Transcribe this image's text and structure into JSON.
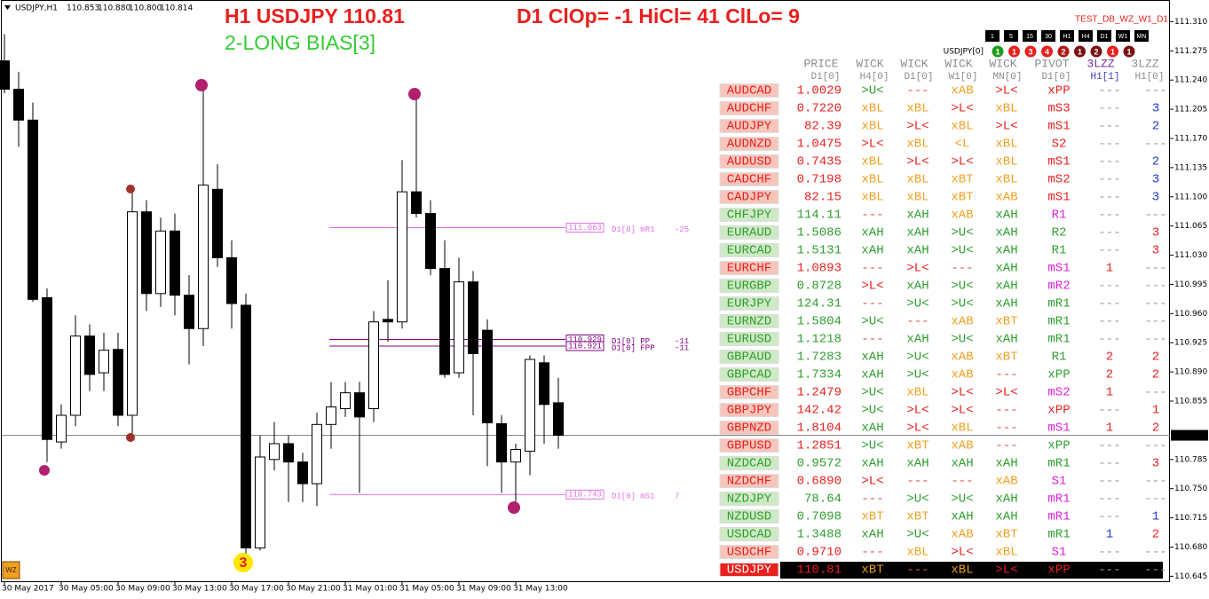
{
  "header": {
    "symbol_tf": "USDJPY,H1",
    "ohlc": [
      "110.853",
      "110.880",
      "110.800",
      "110.814"
    ],
    "title": "H1 USDJPY 110.81",
    "stats": "D1 ClOp= -1 HiCl= 41 ClLo= 9",
    "bias": "2-LONG BIAS[3]",
    "template": "TEST_DB_WZ_W1_D1",
    "badge": "WZ"
  },
  "timeframes": [
    "1",
    "5",
    "15",
    "30",
    "H1",
    "H4",
    "D1",
    "W1",
    "MN"
  ],
  "status": {
    "label": "USDJPY[0]",
    "values": [
      1,
      1,
      3,
      4,
      2,
      1,
      2,
      1,
      1
    ],
    "colors": [
      "#1a9e1a",
      "#e8201e",
      "#e8201e",
      "#e8201e",
      "#b01818",
      "#7a1010",
      "#7a1010",
      "#e8201e",
      "#7a1010"
    ]
  },
  "chart_data": {
    "type": "candlestick",
    "categories": [
      "30 May 2017",
      null,
      null,
      null,
      "30 May 05:00",
      null,
      null,
      null,
      "30 May 09:00",
      null,
      null,
      null,
      "30 May 13:00",
      null,
      null,
      null,
      "30 May 17:00",
      null,
      null,
      null,
      "30 May 21:00",
      null,
      null,
      null,
      "31 May 01:00",
      null,
      null,
      null,
      "31 May 05:00",
      null,
      null,
      null,
      "31 May 09:00",
      null,
      null,
      null,
      "31 May 13:00",
      null,
      null,
      null
    ],
    "open": [
      111.263,
      111.229,
      111.192,
      110.979,
      110.806,
      110.838,
      110.933,
      110.889,
      110.917,
      110.838,
      111.082,
      110.984,
      111.059,
      110.982,
      110.942,
      111.109,
      111.027,
      110.97,
      110.679,
      110.785,
      110.804,
      110.782,
      110.756,
      110.827,
      110.846,
      110.865,
      110.846,
      110.953,
      110.95,
      111.106,
      111.08,
      111.014,
      110.889,
      110.998,
      110.94,
      110.828,
      110.782,
      110.795,
      110.901,
      110.853
    ],
    "high": [
      111.295,
      111.25,
      111.213,
      110.99,
      110.851,
      110.958,
      110.947,
      110.937,
      110.937,
      111.107,
      111.096,
      111.075,
      111.08,
      111.006,
      111.231,
      111.139,
      111.048,
      110.984,
      110.814,
      110.83,
      110.814,
      110.793,
      110.841,
      110.878,
      110.878,
      110.878,
      110.963,
      111.0,
      111.144,
      111.224,
      111.096,
      111.048,
      111.027,
      111.011,
      110.953,
      110.838,
      110.804,
      110.91,
      110.91,
      110.883
    ],
    "low": [
      111.224,
      111.16,
      110.974,
      110.782,
      110.798,
      110.825,
      110.867,
      110.867,
      110.825,
      110.812,
      110.963,
      110.968,
      110.958,
      110.899,
      110.921,
      111.016,
      110.942,
      110.671,
      110.676,
      110.772,
      110.734,
      110.734,
      110.729,
      110.798,
      110.836,
      110.745,
      110.83,
      110.926,
      110.942,
      111.075,
      111.006,
      110.883,
      110.883,
      110.838,
      110.777,
      110.745,
      110.729,
      110.766,
      110.804,
      110.798
    ],
    "close": [
      111.229,
      111.192,
      110.977,
      110.809,
      110.838,
      110.933,
      110.887,
      110.916,
      110.838,
      111.082,
      110.984,
      111.059,
      110.982,
      110.942,
      111.114,
      111.027,
      110.972,
      110.679,
      110.788,
      110.804,
      110.782,
      110.756,
      110.827,
      110.848,
      110.865,
      110.836,
      110.95,
      110.95,
      111.106,
      111.08,
      111.014,
      110.887,
      110.998,
      110.912,
      110.829,
      110.782,
      110.797,
      110.905,
      110.851,
      110.814
    ],
    "up_color": "#ffffff",
    "down_color": "#000000",
    "ylim": [
      110.639,
      111.336
    ],
    "yticks": [
      {
        "value": 111.31,
        "label": "111.310"
      },
      {
        "value": 111.275,
        "label": "111.275"
      },
      {
        "value": 111.24,
        "label": "111.240"
      },
      {
        "value": 111.205,
        "label": "111.205"
      },
      {
        "value": 111.17,
        "label": "111.170"
      },
      {
        "value": 111.135,
        "label": "111.135"
      },
      {
        "value": 111.1,
        "label": "111.100"
      },
      {
        "value": 111.065,
        "label": "111.065"
      },
      {
        "value": 111.03,
        "label": "111.030"
      },
      {
        "value": 110.995,
        "label": "110.995"
      },
      {
        "value": 110.96,
        "label": "110.960"
      },
      {
        "value": 110.925,
        "label": "110.925"
      },
      {
        "value": 110.89,
        "label": "110.890"
      },
      {
        "value": 110.855,
        "label": "110.855"
      },
      {
        "value": 110.785,
        "label": "110.785"
      },
      {
        "value": 110.75,
        "label": "110.750"
      },
      {
        "value": 110.715,
        "label": "110.715"
      },
      {
        "value": 110.68,
        "label": "110.680"
      },
      {
        "value": 110.645,
        "label": "110.645"
      }
    ],
    "last_price": {
      "value": 110.814,
      "label": "110.814"
    },
    "levels": [
      {
        "value": 111.063,
        "label": "111.063",
        "name": "D1[0] mR1",
        "note": "-25",
        "color": "#e070e0"
      },
      {
        "value": 110.929,
        "label": "110.929",
        "name": "D1[0] PP",
        "note": "-11",
        "color": "#800080"
      },
      {
        "value": 110.921,
        "label": "110.921",
        "name": "D1[0] FPP",
        "note": "-11",
        "color": "#800080"
      },
      {
        "value": 110.743,
        "label": "110.743",
        "name": "D1[0] mS1",
        "note": "7",
        "color": "#e070e0"
      }
    ],
    "wave_label": "3"
  },
  "table": {
    "header": [
      "PRICE",
      "WICK",
      "WICK",
      "WICK",
      "WICK",
      "PIVOT",
      "3LZZ",
      "3LZZ"
    ],
    "subheader": [
      "D1[0]",
      "H4[0]",
      "D1[0]",
      "W1[0]",
      "MN[0]",
      "D1[0]",
      "H1[1]",
      "H1[0]"
    ],
    "header_colors": [
      "#8c8c8c",
      "#8c8c8c",
      "#8c8c8c",
      "#8c8c8c",
      "#8c8c8c",
      "#8c8c8c",
      "#7a2a9a",
      "#8c8c8c"
    ],
    "subheader_colors": [
      "#8c8c8c",
      "#8c8c8c",
      "#8c8c8c",
      "#8c8c8c",
      "#8c8c8c",
      "#8c8c8c",
      "#3a3ac0",
      "#8c8c8c"
    ],
    "rows": [
      {
        "symbol": "AUDCAD",
        "price": "1.0029",
        "color": "#e8201e",
        "symbol_background": "#f6c6bc",
        "signals": [
          ">U<",
          "---",
          "xAB",
          ">L<",
          "xPP",
          "---",
          "---"
        ],
        "signal_colors": [
          "#2e9e2e",
          "#e05050",
          "#f0a020",
          "#e8201e",
          "#e8201e",
          "#999999",
          "#999999"
        ]
      },
      {
        "symbol": "AUDCHF",
        "price": "0.7220",
        "color": "#e8201e",
        "symbol_background": "#f6c6bc",
        "signals": [
          "xBL",
          "xBL",
          ">L<",
          "xBL",
          "mS3",
          "---",
          "3"
        ],
        "signal_colors": [
          "#f0a020",
          "#f0a020",
          "#e8201e",
          "#f0a020",
          "#e8201e",
          "#999999",
          "#1a3acc"
        ]
      },
      {
        "symbol": "AUDJPY",
        "price": "82.39",
        "color": "#e8201e",
        "symbol_background": "#f6c6bc",
        "signals": [
          "xBL",
          ">L<",
          "xBL",
          ">L<",
          "mS1",
          "---",
          "2"
        ],
        "signal_colors": [
          "#f0a020",
          "#e8201e",
          "#f0a020",
          "#e8201e",
          "#e8201e",
          "#999999",
          "#1a3acc"
        ]
      },
      {
        "symbol": "AUDNZD",
        "price": "1.0475",
        "color": "#e8201e",
        "symbol_background": "#f6c6bc",
        "signals": [
          ">L<",
          "xBL",
          "<L",
          "xBL",
          "S2",
          "---",
          "---"
        ],
        "signal_colors": [
          "#e8201e",
          "#f0a020",
          "#f0a020",
          "#f0a020",
          "#e8201e",
          "#999999",
          "#999999"
        ]
      },
      {
        "symbol": "AUDUSD",
        "price": "0.7435",
        "color": "#e8201e",
        "symbol_background": "#f6c6bc",
        "signals": [
          "xBL",
          ">L<",
          ">L<",
          "xBL",
          "mS1",
          "---",
          "2"
        ],
        "signal_colors": [
          "#f0a020",
          "#e8201e",
          "#e8201e",
          "#f0a020",
          "#e8201e",
          "#999999",
          "#1a3acc"
        ]
      },
      {
        "symbol": "CADCHF",
        "price": "0.7198",
        "color": "#e8201e",
        "symbol_background": "#f6c6bc",
        "signals": [
          "xBL",
          "xBL",
          "xBT",
          "xBL",
          "mS2",
          "---",
          "3"
        ],
        "signal_colors": [
          "#f0a020",
          "#f0a020",
          "#f0a020",
          "#f0a020",
          "#e8201e",
          "#999999",
          "#1a3acc"
        ]
      },
      {
        "symbol": "CADJPY",
        "price": "82.15",
        "color": "#e8201e",
        "symbol_background": "#f6c6bc",
        "signals": [
          "xBL",
          "xBL",
          "xBT",
          "xAB",
          "mS1",
          "---",
          "3"
        ],
        "signal_colors": [
          "#f0a020",
          "#f0a020",
          "#f0a020",
          "#f0a020",
          "#e8201e",
          "#999999",
          "#1a3acc"
        ]
      },
      {
        "symbol": "CHFJPY",
        "price": "114.11",
        "color": "#2e9e2e",
        "symbol_background": "#cfe9c6",
        "signals": [
          "---",
          "xAH",
          "xAB",
          "xAH",
          "R1",
          "---",
          "---"
        ],
        "signal_colors": [
          "#e05050",
          "#2e9e2e",
          "#f0a020",
          "#2e9e2e",
          "#e020e0",
          "#999999",
          "#999999"
        ]
      },
      {
        "symbol": "EURAUD",
        "price": "1.5086",
        "color": "#2e9e2e",
        "symbol_background": "#cfe9c6",
        "signals": [
          "xAH",
          "xAH",
          ">U<",
          "xAH",
          "R2",
          "---",
          "3"
        ],
        "signal_colors": [
          "#2e9e2e",
          "#2e9e2e",
          "#2e9e2e",
          "#2e9e2e",
          "#2e9e2e",
          "#999999",
          "#e8201e"
        ]
      },
      {
        "symbol": "EURCAD",
        "price": "1.5131",
        "color": "#2e9e2e",
        "symbol_background": "#cfe9c6",
        "signals": [
          "xAH",
          "xAH",
          ">U<",
          "xAH",
          "R1",
          "---",
          "3"
        ],
        "signal_colors": [
          "#2e9e2e",
          "#2e9e2e",
          "#2e9e2e",
          "#2e9e2e",
          "#2e9e2e",
          "#999999",
          "#e8201e"
        ]
      },
      {
        "symbol": "EURCHF",
        "price": "1.0893",
        "color": "#e8201e",
        "symbol_background": "#f6c6bc",
        "signals": [
          "---",
          ">L<",
          "---",
          "xAH",
          "mS1",
          "1",
          "---"
        ],
        "signal_colors": [
          "#e05050",
          "#e8201e",
          "#e05050",
          "#2e9e2e",
          "#e020e0",
          "#e8201e",
          "#999999"
        ]
      },
      {
        "symbol": "EURGBP",
        "price": "0.8728",
        "color": "#2e9e2e",
        "symbol_background": "#cfe9c6",
        "signals": [
          ">L<",
          "xAH",
          ">U<",
          "xAH",
          "mR2",
          "---",
          "---"
        ],
        "signal_colors": [
          "#e8201e",
          "#2e9e2e",
          "#2e9e2e",
          "#2e9e2e",
          "#e020e0",
          "#999999",
          "#999999"
        ]
      },
      {
        "symbol": "EURJPY",
        "price": "124.31",
        "color": "#2e9e2e",
        "symbol_background": "#cfe9c6",
        "signals": [
          "---",
          ">U<",
          ">U<",
          "xAH",
          "mR1",
          "---",
          "---"
        ],
        "signal_colors": [
          "#e05050",
          "#2e9e2e",
          "#2e9e2e",
          "#2e9e2e",
          "#2e9e2e",
          "#999999",
          "#999999"
        ]
      },
      {
        "symbol": "EURNZD",
        "price": "1.5804",
        "color": "#2e9e2e",
        "symbol_background": "#cfe9c6",
        "signals": [
          ">U<",
          "---",
          "xAB",
          "xBT",
          "mR1",
          "---",
          "---"
        ],
        "signal_colors": [
          "#2e9e2e",
          "#e05050",
          "#f0a020",
          "#f0a020",
          "#2e9e2e",
          "#999999",
          "#999999"
        ]
      },
      {
        "symbol": "EURUSD",
        "price": "1.1218",
        "color": "#2e9e2e",
        "symbol_background": "#cfe9c6",
        "signals": [
          "---",
          "xAH",
          ">U<",
          "xAH",
          "mR1",
          "---",
          "---"
        ],
        "signal_colors": [
          "#e05050",
          "#2e9e2e",
          "#2e9e2e",
          "#2e9e2e",
          "#2e9e2e",
          "#999999",
          "#999999"
        ]
      },
      {
        "symbol": "GBPAUD",
        "price": "1.7283",
        "color": "#2e9e2e",
        "symbol_background": "#cfe9c6",
        "signals": [
          "xAH",
          ">U<",
          "xAB",
          "xBT",
          "R1",
          "2",
          "2"
        ],
        "signal_colors": [
          "#2e9e2e",
          "#2e9e2e",
          "#f0a020",
          "#f0a020",
          "#2e9e2e",
          "#e8201e",
          "#e8201e"
        ]
      },
      {
        "symbol": "GBPCAD",
        "price": "1.7334",
        "color": "#2e9e2e",
        "symbol_background": "#cfe9c6",
        "signals": [
          "xAH",
          ">U<",
          "xAB",
          "---",
          "xPP",
          "2",
          "2"
        ],
        "signal_colors": [
          "#2e9e2e",
          "#2e9e2e",
          "#f0a020",
          "#e05050",
          "#2e9e2e",
          "#e8201e",
          "#e8201e"
        ]
      },
      {
        "symbol": "GBPCHF",
        "price": "1.2479",
        "color": "#e8201e",
        "symbol_background": "#f6c6bc",
        "signals": [
          ">U<",
          "xBL",
          ">L<",
          ">L<",
          "mS2",
          "1",
          "---"
        ],
        "signal_colors": [
          "#2e9e2e",
          "#f0a020",
          "#e8201e",
          "#e8201e",
          "#e020e0",
          "#e8201e",
          "#999999"
        ]
      },
      {
        "symbol": "GBPJPY",
        "price": "142.42",
        "color": "#e8201e",
        "symbol_background": "#f6c6bc",
        "signals": [
          ">U<",
          ">L<",
          ">L<",
          "---",
          "xPP",
          "---",
          "1"
        ],
        "signal_colors": [
          "#2e9e2e",
          "#e8201e",
          "#e8201e",
          "#e05050",
          "#e8201e",
          "#999999",
          "#e8201e"
        ]
      },
      {
        "symbol": "GBPNZD",
        "price": "1.8104",
        "color": "#e8201e",
        "symbol_background": "#f6c6bc",
        "signals": [
          "xAH",
          ">L<",
          "xBL",
          "---",
          "mS1",
          "1",
          "2"
        ],
        "signal_colors": [
          "#2e9e2e",
          "#e8201e",
          "#f0a020",
          "#e05050",
          "#e020e0",
          "#e8201e",
          "#e8201e"
        ]
      },
      {
        "symbol": "GBPUSD",
        "price": "1.2851",
        "color": "#e8201e",
        "symbol_background": "#f6c6bc",
        "signals": [
          ">U<",
          "xBT",
          "xAB",
          "---",
          "xPP",
          "---",
          "---"
        ],
        "signal_colors": [
          "#2e9e2e",
          "#f0a020",
          "#f0a020",
          "#e05050",
          "#2e9e2e",
          "#999999",
          "#999999"
        ]
      },
      {
        "symbol": "NZDCAD",
        "price": "0.9572",
        "color": "#2e9e2e",
        "symbol_background": "#cfe9c6",
        "signals": [
          "xAH",
          "xAH",
          "xAH",
          "xAH",
          "mR1",
          "---",
          "3"
        ],
        "signal_colors": [
          "#2e9e2e",
          "#2e9e2e",
          "#2e9e2e",
          "#2e9e2e",
          "#2e9e2e",
          "#999999",
          "#e8201e"
        ]
      },
      {
        "symbol": "NZDCHF",
        "price": "0.6890",
        "color": "#e8201e",
        "symbol_background": "#f6c6bc",
        "signals": [
          ">L<",
          "---",
          "---",
          "xAB",
          "S1",
          "---",
          "---"
        ],
        "signal_colors": [
          "#e8201e",
          "#e05050",
          "#e05050",
          "#f0a020",
          "#e020e0",
          "#999999",
          "#999999"
        ]
      },
      {
        "symbol": "NZDJPY",
        "price": "78.64",
        "color": "#2e9e2e",
        "symbol_background": "#cfe9c6",
        "signals": [
          "---",
          ">U<",
          ">U<",
          "xAH",
          "mR1",
          "---",
          "---"
        ],
        "signal_colors": [
          "#e05050",
          "#2e9e2e",
          "#2e9e2e",
          "#2e9e2e",
          "#e020e0",
          "#999999",
          "#999999"
        ]
      },
      {
        "symbol": "NZDUSD",
        "price": "0.7098",
        "color": "#2e9e2e",
        "symbol_background": "#cfe9c6",
        "signals": [
          "xBT",
          "xBT",
          "xAH",
          "xAH",
          "mR1",
          "---",
          "1"
        ],
        "signal_colors": [
          "#f0a020",
          "#f0a020",
          "#2e9e2e",
          "#2e9e2e",
          "#e020e0",
          "#999999",
          "#1a3acc"
        ]
      },
      {
        "symbol": "USDCAD",
        "price": "1.3488",
        "color": "#2e9e2e",
        "symbol_background": "#cfe9c6",
        "signals": [
          "xAH",
          ">U<",
          "xAB",
          "xBT",
          "mR1",
          "1",
          "2"
        ],
        "signal_colors": [
          "#2e9e2e",
          "#2e9e2e",
          "#f0a020",
          "#f0a020",
          "#2e9e2e",
          "#1a3acc",
          "#e8201e"
        ]
      },
      {
        "symbol": "USDCHF",
        "price": "0.9710",
        "color": "#e8201e",
        "symbol_background": "#f6c6bc",
        "signals": [
          "---",
          "xBL",
          ">L<",
          "xBL",
          "S1",
          "---",
          "---"
        ],
        "signal_colors": [
          "#e05050",
          "#f0a020",
          "#e8201e",
          "#f0a020",
          "#e020e0",
          "#999999",
          "#999999"
        ]
      },
      {
        "symbol": "USDJPY",
        "price": "110.81",
        "color": "#e8201e",
        "symbol_color": "#ffffff",
        "symbol_background": "#e8201e",
        "background": "#000000",
        "signals": [
          "xBT",
          "---",
          "xBL",
          ">L<",
          "xPP",
          "---",
          "---"
        ],
        "signal_colors": [
          "#f0a020",
          "#e05050",
          "#f0a020",
          "#e8201e",
          "#e8201e",
          "#999999",
          "#999999"
        ]
      }
    ]
  }
}
